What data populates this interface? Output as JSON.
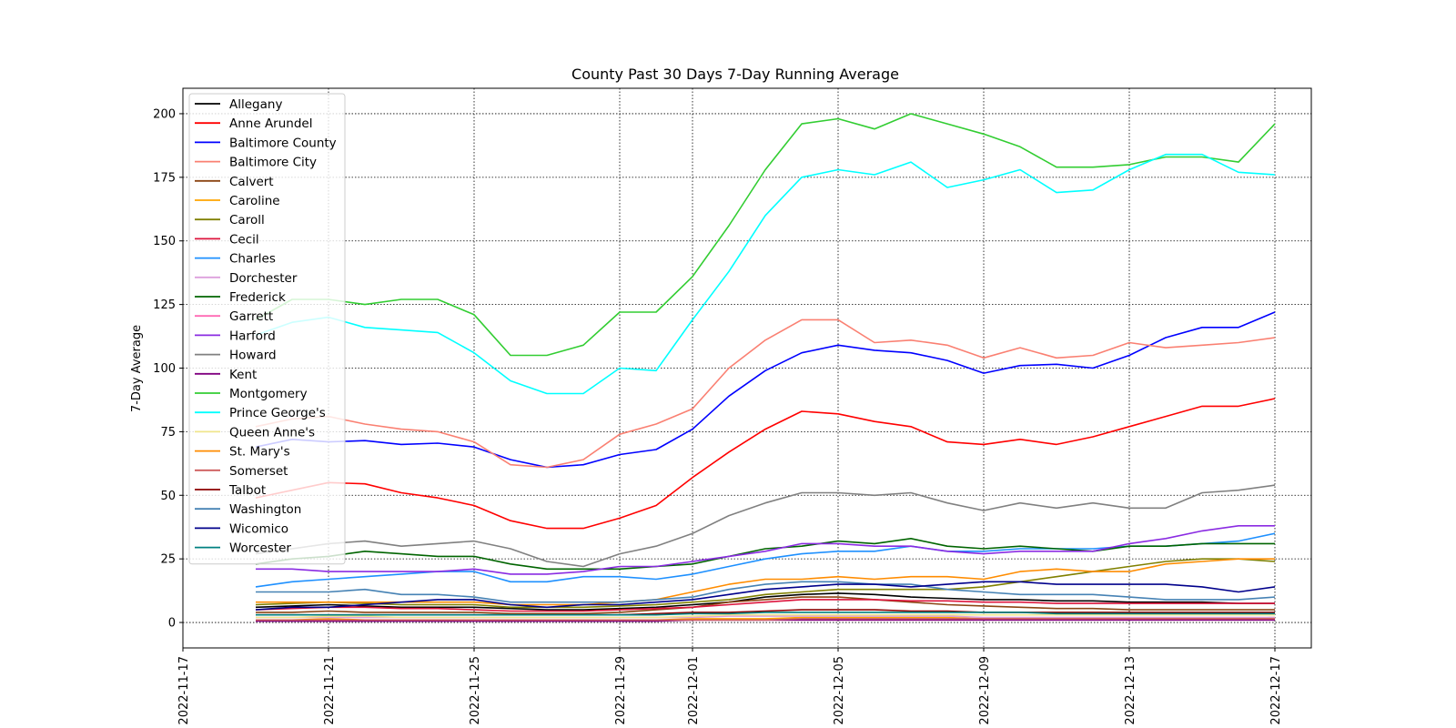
{
  "chart_data": {
    "type": "line",
    "title": "County Past 30 Days 7-Day Running Average",
    "xlabel": "",
    "ylabel": "7-Day Average",
    "x": [
      "2022-11-19",
      "2022-11-20",
      "2022-11-21",
      "2022-11-22",
      "2022-11-23",
      "2022-11-24",
      "2022-11-25",
      "2022-11-26",
      "2022-11-27",
      "2022-11-28",
      "2022-11-29",
      "2022-11-30",
      "2022-12-01",
      "2022-12-02",
      "2022-12-03",
      "2022-12-04",
      "2022-12-05",
      "2022-12-06",
      "2022-12-07",
      "2022-12-08",
      "2022-12-09",
      "2022-12-10",
      "2022-12-11",
      "2022-12-12",
      "2022-12-13",
      "2022-12-14",
      "2022-12-15",
      "2022-12-16",
      "2022-12-17"
    ],
    "x_range": [
      "2022-11-17",
      "2022-12-18"
    ],
    "x_ticks": [
      "2022-11-17",
      "2022-11-21",
      "2022-11-25",
      "2022-11-29",
      "2022-12-01",
      "2022-12-05",
      "2022-12-09",
      "2022-12-13",
      "2022-12-17"
    ],
    "ylim": [
      -10,
      210
    ],
    "y_ticks": [
      0,
      25,
      50,
      75,
      100,
      125,
      150,
      175,
      200
    ],
    "grid": true,
    "legend_position": "upper-left",
    "series": [
      {
        "name": "Allegany",
        "color": "#000000",
        "values": [
          6,
          6.5,
          7,
          6.5,
          6,
          6,
          6,
          5.5,
          5,
          5,
          5.5,
          6,
          7,
          8,
          10,
          11,
          11.5,
          11,
          10,
          9.5,
          9,
          9,
          8.5,
          8.5,
          8,
          8,
          8,
          7.5,
          7.5
        ]
      },
      {
        "name": "Anne Arundel",
        "color": "#ff0000",
        "values": [
          49,
          52,
          55,
          54.5,
          51,
          49,
          46,
          40,
          37,
          37,
          41,
          46,
          57,
          67,
          76,
          83,
          82,
          79,
          77,
          71,
          70,
          72,
          70,
          73,
          77,
          81,
          85,
          85,
          88
        ]
      },
      {
        "name": "Baltimore County",
        "color": "#0000ff",
        "values": [
          69,
          72,
          71,
          71.5,
          70,
          70.5,
          69,
          64,
          61,
          62,
          66,
          68,
          76,
          89,
          99,
          106,
          109,
          107,
          106,
          103,
          98,
          101,
          101.5,
          100,
          105,
          112,
          116,
          116,
          122
        ]
      },
      {
        "name": "Baltimore City",
        "color": "#fa8072",
        "values": [
          77,
          80,
          81,
          78,
          76,
          75,
          71,
          62,
          61,
          64,
          74,
          78,
          84,
          100,
          111,
          119,
          119,
          110,
          111,
          109,
          104,
          108,
          104,
          105,
          110,
          108,
          109,
          110,
          112
        ]
      },
      {
        "name": "Calvert",
        "color": "#8b4513",
        "values": [
          4,
          4,
          4.5,
          4,
          4,
          4,
          4,
          3.5,
          3.5,
          3.5,
          4,
          5,
          6,
          8,
          9,
          10,
          10,
          9,
          8,
          7,
          6.5,
          6,
          5.5,
          5.5,
          5,
          5,
          5,
          5,
          5
        ]
      },
      {
        "name": "Caroline",
        "color": "#ffa500",
        "values": [
          1,
          1,
          1.5,
          1,
          1,
          1,
          1,
          1,
          1,
          1,
          1,
          1,
          1.5,
          1.5,
          1.5,
          2,
          2,
          2,
          2,
          2,
          1.5,
          1.5,
          1.5,
          1.5,
          1.5,
          1.5,
          1.5,
          1.5,
          2
        ]
      },
      {
        "name": "Caroll",
        "color": "#808000",
        "values": [
          7,
          7.5,
          8,
          7.5,
          7,
          7,
          7,
          6,
          6,
          6,
          6.5,
          7,
          8,
          9,
          11,
          12,
          13,
          13,
          13,
          13,
          14,
          16,
          18,
          20,
          22,
          24,
          25,
          25,
          24
        ]
      },
      {
        "name": "Cecil",
        "color": "#dc143c",
        "values": [
          5,
          5.5,
          6,
          6,
          5.5,
          5.5,
          5,
          4.5,
          4.5,
          4.5,
          5,
          5.5,
          6,
          7,
          8,
          9,
          9,
          9,
          8.5,
          8.5,
          8,
          8,
          7.5,
          7.5,
          7.5,
          7.5,
          7.5,
          7.5,
          7.5
        ]
      },
      {
        "name": "Charles",
        "color": "#1e90ff",
        "values": [
          14,
          16,
          17,
          18,
          19,
          20,
          20,
          16,
          16,
          18,
          18,
          17,
          19,
          22,
          25,
          27,
          28,
          28,
          30,
          28,
          28,
          29,
          29,
          29,
          30,
          30,
          31,
          32,
          35
        ]
      },
      {
        "name": "Dorchester",
        "color": "#dda0dd",
        "values": [
          2,
          2,
          2,
          2,
          2,
          2,
          2,
          2,
          2,
          2,
          2,
          2,
          2,
          2.5,
          2.5,
          2.5,
          2.5,
          2.5,
          2.5,
          2.5,
          2,
          2,
          2,
          2,
          2,
          2,
          2,
          2,
          2
        ]
      },
      {
        "name": "Frederick",
        "color": "#006400",
        "values": [
          23,
          25,
          26,
          28,
          27,
          26,
          26,
          23,
          21,
          21,
          21,
          22,
          23,
          26,
          29,
          30,
          32,
          31,
          33,
          30,
          29,
          30,
          29,
          28,
          30,
          30,
          31,
          31,
          31
        ]
      },
      {
        "name": "Garrett",
        "color": "#ff69b4",
        "values": [
          1,
          1,
          1,
          1,
          1,
          1,
          1,
          1,
          1,
          1,
          1,
          1,
          1,
          1,
          1,
          1,
          1,
          1,
          1,
          1,
          1,
          1,
          1,
          1,
          1,
          1,
          1,
          1,
          1
        ]
      },
      {
        "name": "Harford",
        "color": "#8a2be2",
        "values": [
          21,
          21,
          20,
          20,
          20,
          20,
          21,
          19,
          19,
          20,
          22,
          22,
          24,
          26,
          28,
          31,
          31,
          30,
          30,
          28,
          27,
          28,
          28,
          28,
          31,
          33,
          36,
          38,
          38
        ]
      },
      {
        "name": "Howard",
        "color": "#808080",
        "values": [
          27,
          29,
          31,
          32,
          30,
          31,
          32,
          29,
          24,
          22,
          27,
          30,
          35,
          42,
          47,
          51,
          51,
          50,
          51,
          47,
          44,
          47,
          45,
          47,
          45,
          45,
          51,
          52,
          54
        ]
      },
      {
        "name": "Kent",
        "color": "#800080",
        "values": [
          0.5,
          0.5,
          0.5,
          0.5,
          0.5,
          0.5,
          0.5,
          0.5,
          0.5,
          0.5,
          0.5,
          0.5,
          1,
          1,
          1,
          1,
          1,
          1,
          1,
          1,
          1,
          1,
          1,
          1,
          1,
          1,
          1,
          1,
          1
        ]
      },
      {
        "name": "Montgomery",
        "color": "#32cd32",
        "values": [
          119,
          127,
          127,
          125,
          127,
          127,
          121,
          105,
          105,
          109,
          122,
          122,
          136,
          156,
          178,
          196,
          198,
          194,
          200,
          196,
          192,
          187,
          179,
          179,
          180,
          183,
          183,
          181,
          196
        ]
      },
      {
        "name": "Prince George's",
        "color": "#00ffff",
        "values": [
          113,
          118,
          120,
          116,
          115,
          114,
          106,
          95,
          90,
          90,
          100,
          99,
          119,
          138,
          160,
          175,
          178,
          176,
          181,
          171,
          174,
          178,
          169,
          170,
          178,
          184,
          184,
          177,
          176
        ]
      },
      {
        "name": "Queen Anne's",
        "color": "#f0e68c",
        "values": [
          2,
          2,
          2.5,
          2.5,
          2,
          2,
          2,
          2,
          2,
          2,
          2,
          2,
          2.5,
          3,
          3,
          3,
          3,
          3,
          3,
          3,
          3,
          3,
          3,
          3,
          3,
          3,
          3,
          3,
          3
        ]
      },
      {
        "name": "St. Mary's",
        "color": "#ff8c00",
        "values": [
          8,
          8,
          8,
          8,
          8,
          8,
          8,
          7,
          7,
          7,
          8,
          9,
          12,
          15,
          17,
          17,
          18,
          17,
          18,
          18,
          17,
          20,
          21,
          20,
          20,
          23,
          24,
          25,
          25
        ]
      },
      {
        "name": "Somerset",
        "color": "#cd5c5c",
        "values": [
          1,
          1,
          1,
          1,
          1,
          1,
          1,
          1,
          1,
          1,
          1,
          1,
          1,
          1,
          1,
          1.5,
          1.5,
          1.5,
          1.5,
          1.5,
          1.5,
          1.5,
          1.5,
          1.5,
          1.5,
          1.5,
          1.5,
          1.5,
          1.5
        ]
      },
      {
        "name": "Talbot",
        "color": "#8b0000",
        "values": [
          3,
          3,
          3,
          3,
          3,
          3,
          3,
          3,
          3,
          3,
          3,
          3.5,
          4,
          4,
          4.5,
          5,
          5,
          5,
          4.5,
          4.5,
          4,
          4,
          4,
          4,
          4,
          4,
          4,
          4,
          4
        ]
      },
      {
        "name": "Washington",
        "color": "#4682b4",
        "values": [
          12,
          12,
          12,
          13,
          11,
          11,
          10,
          8,
          8,
          8,
          8,
          9,
          10,
          13,
          15,
          16,
          16,
          15,
          15,
          13,
          12,
          11,
          11,
          11,
          10,
          9,
          9,
          9,
          10
        ]
      },
      {
        "name": "Wicomico",
        "color": "#00008b",
        "values": [
          5,
          6,
          6,
          7,
          8,
          9,
          9,
          7,
          6,
          7,
          7,
          8,
          9,
          11,
          13,
          14,
          15,
          15,
          14,
          15,
          16,
          16,
          15,
          15,
          15,
          15,
          14,
          12,
          14
        ]
      },
      {
        "name": "Worcester",
        "color": "#008080",
        "values": [
          3,
          3,
          3,
          3,
          3,
          3,
          3,
          3,
          3,
          3,
          3,
          3,
          3.5,
          3.5,
          4,
          4,
          4,
          4,
          4,
          4,
          4,
          4,
          3.5,
          3.5,
          3.5,
          3.5,
          3.5,
          3.5,
          3.5
        ]
      }
    ]
  }
}
